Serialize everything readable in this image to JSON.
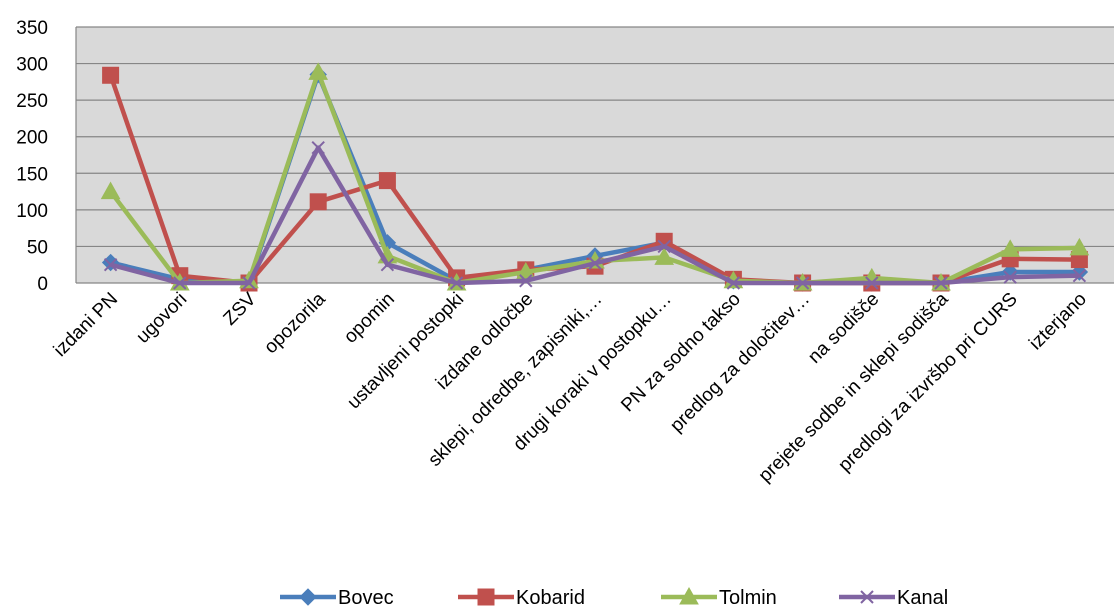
{
  "chart_data": {
    "type": "line",
    "categories": [
      "izdani PN",
      "ugovori",
      "ZSV",
      "opozorila",
      "opomin",
      "ustavljeni postopki",
      "izdane odločbe",
      "sklepi, odredbe, zapisniki,…",
      "drugi koraki v postopku…",
      "PN za sodno takso",
      "predlog za določitev…",
      "na sodišče",
      "prejete sodbe in sklepi sodišča",
      "predlogi za izvršbo pri CURS",
      "izterjano"
    ],
    "ylim": [
      0,
      350
    ],
    "yticks": [
      0,
      50,
      100,
      150,
      200,
      250,
      300,
      350
    ],
    "grid": true,
    "legend_position": "bottom",
    "series": [
      {
        "name": "Bovec",
        "color": "#4a7ebb",
        "marker": "diamond",
        "values": [
          28,
          5,
          0,
          285,
          55,
          3,
          18,
          37,
          55,
          3,
          0,
          0,
          0,
          15,
          15
        ]
      },
      {
        "name": "Kobarid",
        "color": "#c0504d",
        "marker": "square",
        "values": [
          284,
          10,
          0,
          111,
          140,
          7,
          18,
          23,
          57,
          5,
          0,
          0,
          0,
          33,
          32
        ]
      },
      {
        "name": "Tolmin",
        "color": "#9bbb59",
        "marker": "triangle",
        "values": [
          125,
          0,
          3,
          288,
          37,
          0,
          15,
          30,
          35,
          3,
          0,
          7,
          0,
          46,
          48
        ]
      },
      {
        "name": "Kanal",
        "color": "#8064a2",
        "marker": "x",
        "values": [
          25,
          0,
          0,
          185,
          25,
          0,
          3,
          27,
          50,
          0,
          0,
          0,
          0,
          8,
          10
        ]
      }
    ]
  }
}
